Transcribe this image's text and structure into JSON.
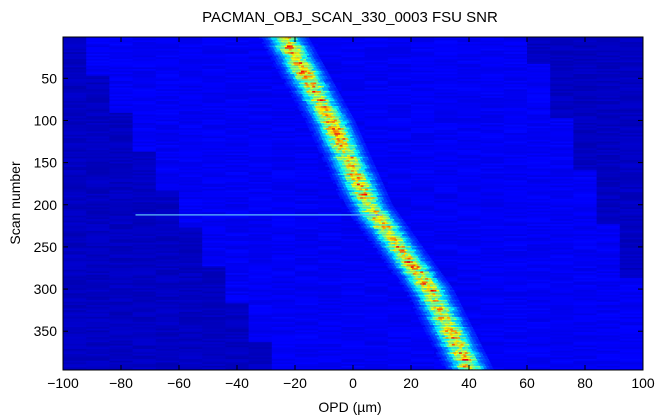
{
  "chart_data": {
    "type": "heatmap",
    "title": "PACMAN_OBJ_SCAN_330_0003 FSU SNR",
    "xlabel": "OPD (µm)",
    "ylabel": "Scan number",
    "xlim": [
      -100,
      100
    ],
    "ylim": [
      1,
      396
    ],
    "y_reversed": true,
    "xticks": [
      -100,
      -80,
      -60,
      -40,
      -20,
      0,
      20,
      40,
      60,
      80,
      100
    ],
    "yticks": [
      50,
      100,
      150,
      200,
      250,
      300,
      350
    ],
    "colormap": "jet",
    "grid": false,
    "fringe_ridge": {
      "description_points": [
        [
          1,
          -24
        ],
        [
          100,
          -8
        ],
        [
          200,
          5
        ],
        [
          300,
          26
        ],
        [
          396,
          40
        ]
      ],
      "width_um": 12
    },
    "bright_streak": {
      "scan": 212,
      "opd_range": [
        -75,
        10
      ]
    },
    "background_color": "#1a24d6",
    "peak_color": "#e0f03a"
  }
}
